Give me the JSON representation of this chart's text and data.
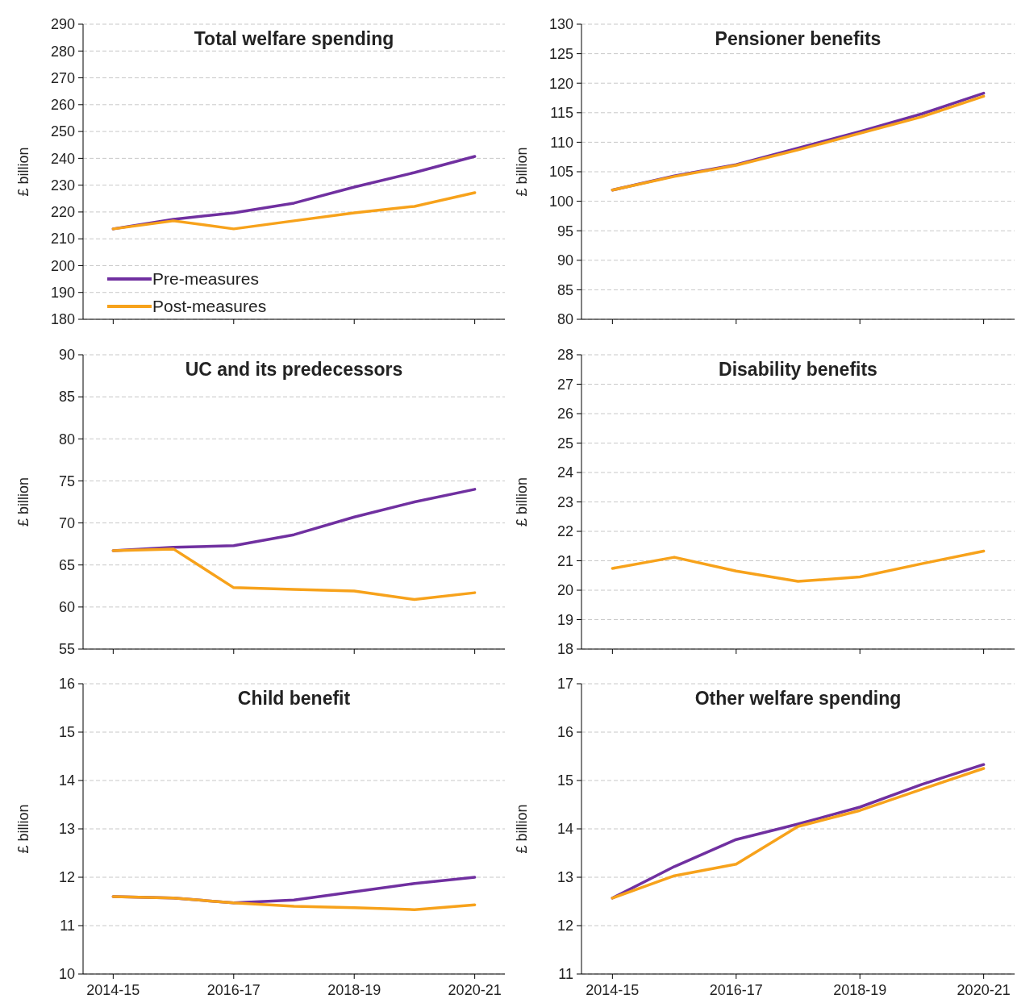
{
  "chart_data": [
    {
      "type": "line",
      "title": "Total welfare spending",
      "ylabel": "£ billion",
      "categories": [
        "2014-15",
        null,
        "2016-17",
        null,
        "2018-19",
        null,
        "2020-21"
      ],
      "ylim": [
        180,
        290
      ],
      "yticks": [
        180,
        190,
        200,
        210,
        220,
        230,
        240,
        250,
        260,
        270,
        280,
        290
      ],
      "grid": "y",
      "legend": "bottom left",
      "tick_labels": "y",
      "series": [
        {
          "name": "Pre-measures",
          "color": "#7030a0",
          "values": [
            213.7,
            217.3,
            219.7,
            223.3,
            229.3,
            234.7,
            240.7
          ]
        },
        {
          "name": "Post-measures",
          "color": "#f7a21b",
          "values": [
            213.7,
            216.7,
            213.7,
            216.7,
            219.7,
            222.1,
            227.2
          ]
        }
      ]
    },
    {
      "type": "line",
      "title": "Pensioner benefits",
      "ylabel": "£ billion",
      "categories": [
        "2014-15",
        null,
        "2016-17",
        null,
        "2018-19",
        null,
        "2020-21"
      ],
      "ylim": [
        80,
        130
      ],
      "yticks": [
        80,
        85,
        90,
        95,
        100,
        105,
        110,
        115,
        120,
        125,
        130
      ],
      "grid": "y",
      "tick_labels": "y",
      "series": [
        {
          "color": "#7030a0",
          "values": [
            101.9,
            104.3,
            106.2,
            109,
            111.8,
            114.8,
            118.3
          ]
        },
        {
          "color": "#f7a21b",
          "values": [
            101.9,
            104.2,
            106.1,
            108.7,
            111.5,
            114.3,
            117.8
          ]
        }
      ]
    },
    {
      "type": "line",
      "title": "UC and its predecessors",
      "ylabel": "£ billion",
      "categories": [
        "2014-15",
        null,
        "2016-17",
        null,
        "2018-19",
        null,
        "2020-21"
      ],
      "ylim": [
        55,
        90
      ],
      "yticks": [
        55,
        60,
        65,
        70,
        75,
        80,
        85,
        90
      ],
      "grid": "y",
      "tick_labels": "y",
      "series": [
        {
          "color": "#7030a0",
          "values": [
            66.7,
            67.1,
            67.3,
            68.6,
            70.7,
            72.5,
            74
          ]
        },
        {
          "color": "#f7a21b",
          "values": [
            66.7,
            66.9,
            62.3,
            62.1,
            61.9,
            60.9,
            61.7
          ]
        }
      ]
    },
    {
      "type": "line",
      "title": "Disability benefits",
      "ylabel": "£ billion",
      "categories": [
        "2014-15",
        null,
        "2016-17",
        null,
        "2018-19",
        null,
        "2020-21"
      ],
      "ylim": [
        18,
        28
      ],
      "yticks": [
        18,
        19,
        20,
        21,
        22,
        23,
        24,
        25,
        26,
        27,
        28
      ],
      "grid": "y",
      "tick_labels": "y",
      "series": [
        {
          "color": "#f7a21b",
          "values": [
            20.74,
            21.12,
            20.65,
            20.3,
            20.45,
            20.9,
            21.33
          ]
        }
      ]
    },
    {
      "type": "line",
      "title": "Child benefit",
      "ylabel": "£ billion",
      "categories": [
        "2014-15",
        null,
        "2016-17",
        null,
        "2018-19",
        null,
        "2020-21"
      ],
      "ylim": [
        10,
        16
      ],
      "yticks": [
        10,
        11,
        12,
        13,
        14,
        15,
        16
      ],
      "grid": "y",
      "series": [
        {
          "color": "#7030a0",
          "values": [
            11.6,
            11.57,
            11.47,
            11.53,
            11.7,
            11.87,
            12
          ]
        },
        {
          "color": "#f7a21b",
          "values": [
            11.6,
            11.57,
            11.47,
            11.4,
            11.37,
            11.33,
            11.43
          ]
        }
      ]
    },
    {
      "type": "line",
      "title": "Other welfare spending",
      "ylabel": "£ billion",
      "categories": [
        "2014-15",
        null,
        "2016-17",
        null,
        "2018-19",
        null,
        "2020-21"
      ],
      "ylim": [
        11,
        17
      ],
      "yticks": [
        11,
        12,
        13,
        14,
        15,
        16,
        17
      ],
      "grid": "y",
      "series": [
        {
          "color": "#7030a0",
          "values": [
            12.57,
            13.22,
            13.78,
            14.1,
            14.45,
            14.92,
            15.33
          ]
        },
        {
          "color": "#f7a21b",
          "values": [
            12.57,
            13.03,
            13.27,
            14.05,
            14.38,
            14.82,
            15.25
          ]
        }
      ]
    }
  ]
}
